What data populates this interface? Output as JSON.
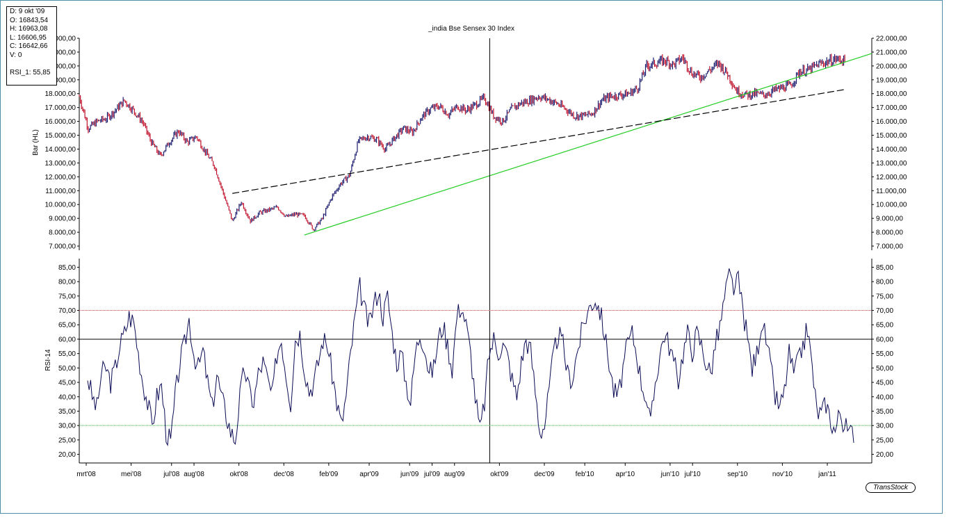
{
  "info_box": {
    "date": "D: 9 okt '09",
    "open": "O: 16843,54",
    "high": "H: 16963,08",
    "low": "L: 16606,95",
    "close": "C: 16642,66",
    "volume": "V: 0",
    "rsi": "RSI_1: 55,85"
  },
  "logo": "TransStock",
  "colors": {
    "bull": "#1a1a6e",
    "bear": "#c0102a",
    "rsi_line": "#0a0a55",
    "trend_green": "#22cc22",
    "trend_black": "#000000",
    "overbought": "#c04040",
    "oversold": "#33aa33"
  },
  "chart_data": [
    {
      "type": "bar",
      "subtype": "ohlc-hl",
      "title": "_india Bse Sensex 30 Index",
      "ylabel": "Bar (HL)",
      "ylim": [
        6700,
        22000
      ],
      "y_ticks": [
        "7.000,00",
        "8.000,00",
        "9.000,00",
        "10.000,00",
        "11.000,00",
        "12.000,00",
        "13.000,00",
        "14.000,00",
        "15.000,00",
        "16.000,00",
        "17.000,00",
        "18.000,00",
        "19.000,00",
        "20.000,00",
        "21.000,00",
        "22.000,00"
      ],
      "y_tick_values": [
        7000,
        8000,
        9000,
        10000,
        11000,
        12000,
        13000,
        14000,
        15000,
        16000,
        17000,
        18000,
        19000,
        20000,
        21000,
        22000
      ],
      "x_categories": [
        "mrt'08",
        "mei'08",
        "jul'08",
        "aug'08",
        "okt'08",
        "dec'08",
        "feb'09",
        "apr'09",
        "jun'09",
        "jul'09",
        "aug'09",
        "okt'09",
        "dec'09",
        "feb'10",
        "apr'10",
        "jun'10",
        "jul'10",
        "sep'10",
        "nov'10",
        "jan'11"
      ],
      "x_index_range": [
        0,
        148
      ],
      "x_category_index": [
        0,
        10,
        19,
        24,
        34,
        44,
        54,
        63,
        72,
        77,
        82,
        92,
        102,
        111,
        120,
        130,
        135,
        145,
        155,
        165
      ],
      "gaps": [
        {
          "after_index": 64,
          "from": 12400,
          "to": 14700
        }
      ],
      "series": [
        {
          "x": [
            0,
            2,
            4,
            6,
            8,
            10,
            12,
            14,
            16,
            18,
            20,
            22,
            24,
            26,
            28,
            30,
            32,
            34,
            36,
            38,
            40,
            42,
            44,
            46,
            48,
            50,
            52,
            54,
            56,
            58,
            60,
            62,
            64,
            66,
            68,
            70,
            72,
            74,
            76,
            78,
            80,
            82,
            84,
            86,
            88,
            90,
            92,
            94,
            96,
            98,
            100,
            102,
            104,
            106,
            108,
            110,
            112,
            114,
            116,
            118,
            120,
            122,
            124,
            126,
            128,
            130,
            132,
            134,
            136,
            138,
            140,
            142,
            144,
            146,
            148,
            150,
            152,
            154,
            156,
            158,
            160,
            162,
            164,
            166,
            168,
            170
          ],
          "close": [
            17800,
            15500,
            16000,
            16200,
            16800,
            17500,
            16800,
            16000,
            14500,
            13500,
            14500,
            15300,
            14500,
            14900,
            13800,
            12800,
            10800,
            8800,
            10200,
            8800,
            9400,
            9600,
            9800,
            9100,
            9300,
            9200,
            8200,
            9000,
            10500,
            11500,
            12100,
            14600,
            14900,
            14700,
            14000,
            14800,
            15500,
            15200,
            16300,
            16900,
            17100,
            16500,
            17100,
            16800,
            17200,
            17700,
            16400,
            16000,
            16900,
            17300,
            17500,
            17800,
            17600,
            17300,
            16900,
            16400,
            16400,
            16600,
            17500,
            17800,
            17900,
            18000,
            18400,
            20000,
            20200,
            20400,
            20100,
            20600,
            19500,
            19200,
            19700,
            20200,
            19400,
            18200,
            17900,
            18000,
            17900,
            18200,
            18400,
            18600,
            19600,
            19700,
            20100,
            20300,
            20500,
            20400
          ],
          "name": ""
        }
      ],
      "trendlines": [
        {
          "color": "trend_green",
          "from": [
            50,
            7800
          ],
          "to": [
            176,
            20900
          ]
        },
        {
          "color": "trend_black",
          "dashed": true,
          "from": [
            34,
            10800
          ],
          "to": [
            170,
            18300
          ]
        }
      ],
      "cursor_index": 91
    },
    {
      "type": "line",
      "ylabel": "RSI-14",
      "ylim": [
        17,
        88
      ],
      "y_ticks": [
        "20,00",
        "25,00",
        "30,00",
        "35,00",
        "40,00",
        "45,00",
        "50,00",
        "55,00",
        "60,00",
        "65,00",
        "70,00",
        "75,00",
        "80,00",
        "85,00"
      ],
      "y_tick_values": [
        20,
        25,
        30,
        35,
        40,
        45,
        50,
        55,
        60,
        65,
        70,
        75,
        80,
        85
      ],
      "levels": {
        "overbought": 70,
        "midline": 60,
        "oversold": 30
      },
      "series": [
        {
          "name": "",
          "x": [
            0,
            1,
            2,
            3,
            4,
            5,
            6,
            7,
            8,
            9,
            10,
            11,
            12,
            13,
            14,
            15,
            16,
            17,
            18,
            19,
            20,
            21,
            22,
            23,
            24,
            25,
            26,
            27,
            28,
            29,
            30,
            31,
            32,
            33,
            34,
            35,
            36,
            37,
            38,
            39,
            40,
            41,
            42,
            43,
            44,
            45,
            46,
            47,
            48,
            49,
            50,
            51,
            52,
            53,
            54,
            55,
            56,
            57,
            58,
            59,
            60,
            61,
            62,
            63,
            64,
            65,
            66,
            67,
            68,
            69,
            70,
            71,
            72,
            73,
            74,
            75,
            76,
            77,
            78,
            79,
            80,
            81,
            82,
            83,
            84,
            85,
            86,
            87,
            88,
            89,
            90,
            91,
            92,
            93,
            94,
            95,
            96,
            97,
            98,
            99,
            100,
            101,
            102,
            103,
            104,
            105,
            106,
            107,
            108,
            109,
            110,
            111,
            112,
            113,
            114,
            115,
            116,
            117,
            118,
            119,
            120,
            121,
            122,
            123,
            124,
            125,
            126,
            127,
            128,
            129,
            130,
            131,
            132,
            133,
            134,
            135,
            136,
            137,
            138,
            139,
            140,
            141,
            142,
            143,
            144,
            145,
            146,
            147,
            148,
            149,
            150,
            151,
            152,
            153,
            154,
            155,
            156,
            157,
            158,
            159,
            160,
            161,
            162,
            163,
            164,
            165,
            166
          ],
          "values": [
            47,
            40,
            36,
            48,
            50,
            45,
            50,
            58,
            62,
            68,
            66,
            55,
            45,
            38,
            30,
            40,
            44,
            28,
            24,
            40,
            52,
            58,
            67,
            55,
            50,
            56,
            45,
            36,
            48,
            40,
            34,
            28,
            25,
            40,
            50,
            42,
            38,
            48,
            52,
            46,
            40,
            55,
            60,
            48,
            38,
            60,
            62,
            50,
            42,
            45,
            52,
            60,
            58,
            48,
            38,
            30,
            40,
            55,
            68,
            78,
            70,
            65,
            72,
            77,
            68,
            75,
            62,
            52,
            55,
            45,
            38,
            55,
            62,
            58,
            48,
            50,
            60,
            65,
            58,
            50,
            68,
            72,
            65,
            55,
            40,
            28,
            38,
            55,
            60,
            56,
            58,
            54,
            46,
            40,
            52,
            60,
            56,
            42,
            28,
            30,
            42,
            55,
            62,
            58,
            48,
            46,
            55,
            62,
            68,
            72,
            74,
            70,
            62,
            52,
            42,
            40,
            50,
            58,
            62,
            55,
            45,
            40,
            30,
            45,
            55,
            62,
            58,
            52,
            46,
            55,
            62,
            56,
            62,
            58,
            52,
            48,
            58,
            64,
            74,
            82,
            78,
            80,
            70,
            60,
            50,
            55,
            66,
            60,
            50,
            40,
            36,
            42,
            55,
            48,
            52,
            58,
            64,
            50,
            35,
            34,
            38,
            32,
            28,
            35,
            30,
            27,
            28
          ]
        }
      ]
    }
  ]
}
